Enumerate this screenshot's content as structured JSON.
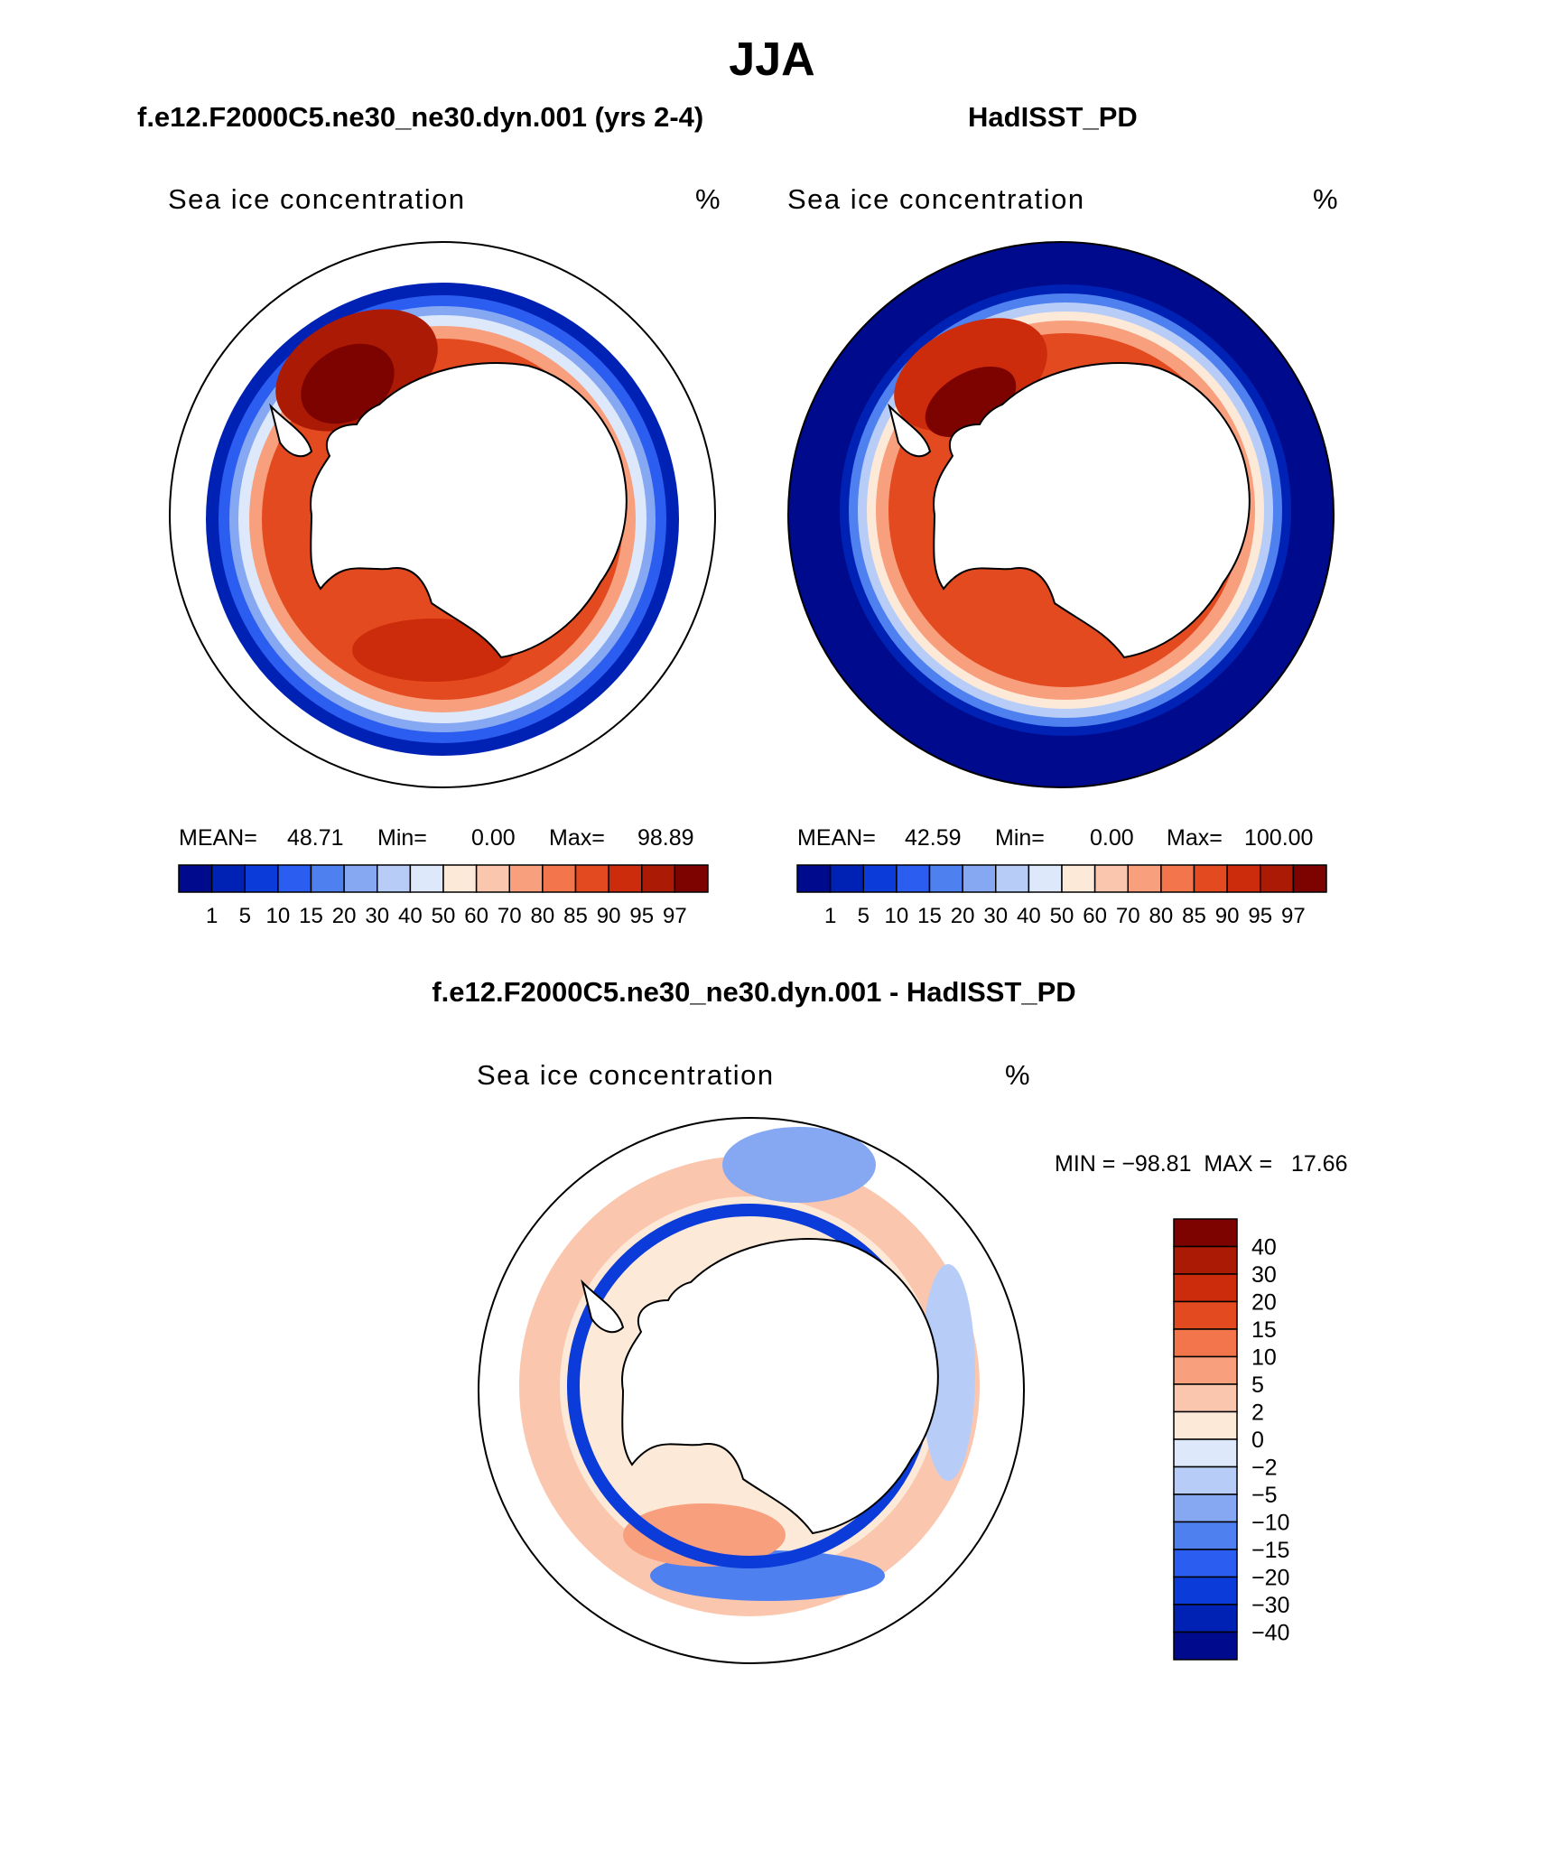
{
  "title": "JJA",
  "panels": {
    "model": {
      "case_title": "f.e12.F2000C5.ne30_ne30.dyn.001 (yrs 2-4)",
      "variable": "Sea ice concentration",
      "units": "%",
      "mean_label": "MEAN=",
      "mean_value": "48.71",
      "min_label": "Min=",
      "min_value": "0.00",
      "max_label": "Max=",
      "max_value": "98.89"
    },
    "obs": {
      "case_title": "HadISST_PD",
      "variable": "Sea ice concentration",
      "units": "%",
      "mean_label": "MEAN=",
      "mean_value": "42.59",
      "min_label": "Min=",
      "min_value": "0.00",
      "max_label": "Max=",
      "max_value": "100.00"
    },
    "diff": {
      "case_title": "f.e12.F2000C5.ne30_ne30.dyn.001 - HadISST_PD",
      "variable": "Sea ice concentration",
      "units": "%",
      "minmax_text": "MIN = −98.81  MAX =   17.66"
    }
  },
  "colorbar_abs": {
    "labels": [
      "1",
      "5",
      "10",
      "15",
      "20",
      "30",
      "40",
      "50",
      "60",
      "70",
      "80",
      "85",
      "90",
      "95",
      "97"
    ],
    "colors": [
      "#000a8c",
      "#0022b4",
      "#0b3bd9",
      "#2a5df0",
      "#4f80f0",
      "#86a8f3",
      "#b7cdf8",
      "#dde9fb",
      "#fde9d8",
      "#fbc6ae",
      "#f89f7e",
      "#f2754b",
      "#e44a20",
      "#cc2c0c",
      "#ab1a04",
      "#7d0300"
    ]
  },
  "colorbar_diff": {
    "labels": [
      "40",
      "30",
      "20",
      "15",
      "10",
      "5",
      "2",
      "0",
      "−2",
      "−5",
      "−10",
      "−15",
      "−20",
      "−30",
      "−40"
    ],
    "colors": [
      "#7d0300",
      "#ab1a04",
      "#cc2c0c",
      "#e44a20",
      "#f2754b",
      "#f89f7e",
      "#fbc6ae",
      "#fde9d8",
      "#dde9fb",
      "#b7cdf8",
      "#86a8f3",
      "#4f80f0",
      "#2a5df0",
      "#0b3bd9",
      "#0022b4",
      "#000a8c"
    ]
  }
}
